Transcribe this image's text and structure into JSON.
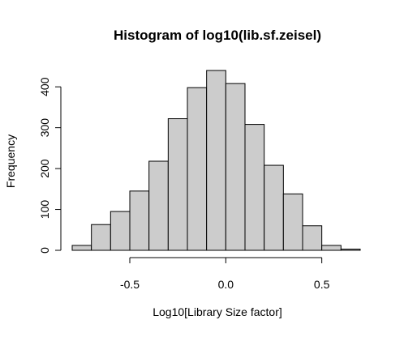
{
  "chart_data": {
    "type": "bar",
    "title": "Histogram of log10(lib.sf.zeisel)",
    "xlabel": "Log10[Library Size factor]",
    "ylabel": "Frequency",
    "bin_edges": [
      -0.8,
      -0.7,
      -0.6,
      -0.5,
      -0.4,
      -0.3,
      -0.2,
      -0.1,
      0.0,
      0.1,
      0.2,
      0.3,
      0.4,
      0.5,
      0.6,
      0.7
    ],
    "values": [
      12,
      63,
      95,
      145,
      218,
      322,
      398,
      440,
      408,
      308,
      208,
      138,
      60,
      12,
      3
    ],
    "xlim": [
      -0.8,
      0.7
    ],
    "ylim": [
      0,
      440
    ],
    "x_ticks": [
      -0.5,
      0.0,
      0.5
    ],
    "x_tick_labels": [
      "-0.5",
      "0.0",
      "0.5"
    ],
    "y_ticks": [
      0,
      100,
      200,
      300,
      400
    ],
    "y_tick_labels": [
      "0",
      "100",
      "200",
      "300",
      "400"
    ],
    "grid": false,
    "bar_color": "#cccccc",
    "edge_color": "#000000"
  }
}
